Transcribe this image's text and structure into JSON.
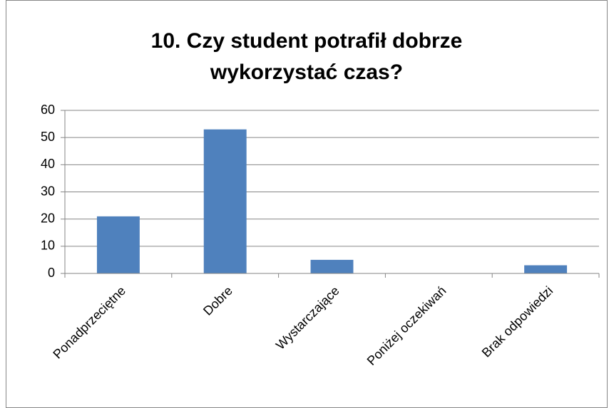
{
  "chart_data": {
    "type": "bar",
    "title": "10. Czy student potrafił dobrze wykorzystać czas?",
    "categories": [
      "Ponadprzeciętne",
      "Dobre",
      "Wystarczające",
      "Poniżej oczekiwań",
      "Brak odpowiedzi"
    ],
    "values": [
      21,
      53,
      5,
      0,
      3
    ],
    "color": "#4f81bd",
    "ylim": [
      0,
      60
    ],
    "yticks": [
      0,
      10,
      20,
      30,
      40,
      50,
      60
    ],
    "grid": true
  }
}
